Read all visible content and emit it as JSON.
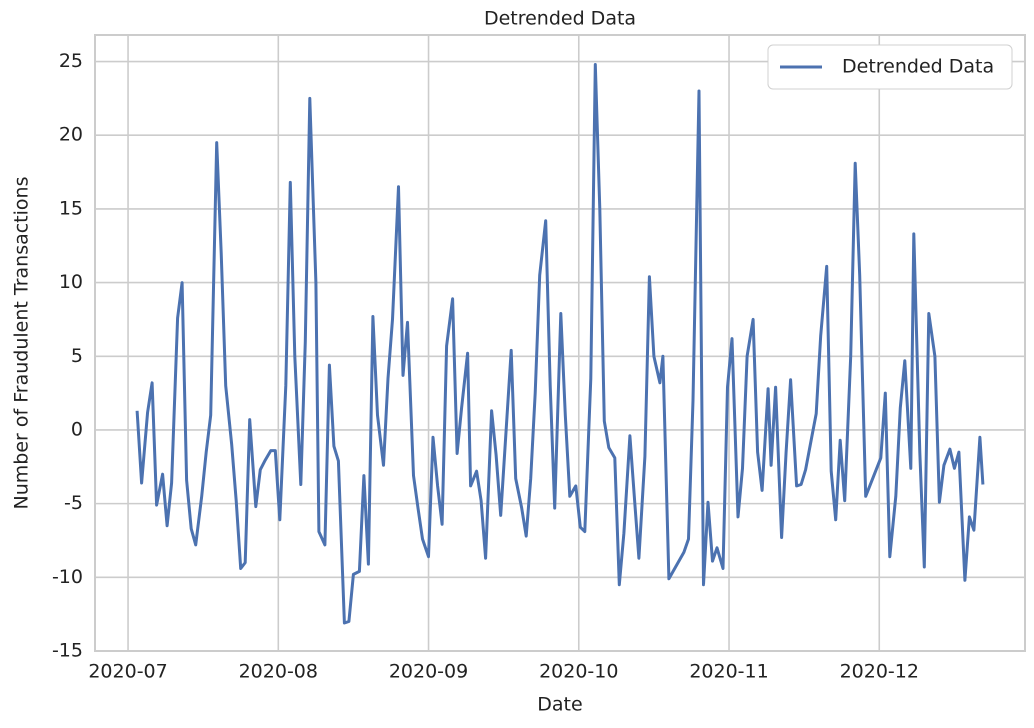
{
  "chart_data": {
    "type": "line",
    "title": "Detrended Data",
    "x_label": "Date",
    "y_label": "Number of Fraudulent Transactions",
    "xlim": [
      6.78,
      12.97
    ],
    "ylim": [
      -15,
      26.8
    ],
    "xticks": [
      {
        "value": 7,
        "label": "2020-07"
      },
      {
        "value": 8,
        "label": "2020-08"
      },
      {
        "value": 9,
        "label": "2020-09"
      },
      {
        "value": 10,
        "label": "2020-10"
      },
      {
        "value": 11,
        "label": "2020-11"
      },
      {
        "value": 12,
        "label": "2020-12"
      }
    ],
    "yticks": [
      -15,
      -10,
      -5,
      0,
      5,
      10,
      15,
      20,
      25
    ],
    "grid": true,
    "legend": "upper right",
    "x": [
      7.06,
      7.09,
      7.13,
      7.16,
      7.19,
      7.23,
      7.26,
      7.29,
      7.33,
      7.36,
      7.39,
      7.42,
      7.45,
      7.49,
      7.52,
      7.55,
      7.59,
      7.62,
      7.65,
      7.69,
      7.72,
      7.75,
      7.78,
      7.81,
      7.85,
      7.88,
      7.91,
      7.95,
      7.98,
      8.01,
      8.05,
      8.08,
      8.11,
      8.15,
      8.18,
      8.21,
      8.25,
      8.27,
      8.31,
      8.34,
      8.37,
      8.4,
      8.44,
      8.47,
      8.5,
      8.54,
      8.57,
      8.6,
      8.63,
      8.66,
      8.7,
      8.73,
      8.76,
      8.8,
      8.83,
      8.86,
      8.9,
      8.93,
      8.96,
      9.0,
      9.03,
      9.06,
      9.09,
      9.12,
      9.16,
      9.19,
      9.22,
      9.26,
      9.28,
      9.32,
      9.35,
      9.38,
      9.42,
      9.45,
      9.48,
      9.52,
      9.55,
      9.58,
      9.62,
      9.65,
      9.68,
      9.71,
      9.74,
      9.78,
      9.81,
      9.84,
      9.88,
      9.91,
      9.94,
      9.98,
      10.01,
      10.04,
      10.08,
      10.11,
      10.14,
      10.17,
      10.2,
      10.24,
      10.27,
      10.3,
      10.34,
      10.37,
      10.4,
      10.44,
      10.47,
      10.5,
      10.54,
      10.56,
      10.6,
      10.7,
      10.73,
      10.76,
      10.8,
      10.83,
      10.86,
      10.89,
      10.92,
      10.96,
      10.99,
      11.02,
      11.06,
      11.09,
      11.12,
      11.16,
      11.19,
      11.22,
      11.26,
      11.28,
      11.31,
      11.35,
      11.38,
      11.41,
      11.45,
      11.48,
      11.51,
      11.55,
      11.58,
      11.61,
      11.65,
      11.68,
      11.71,
      11.74,
      11.77,
      11.81,
      11.84,
      11.87,
      11.91,
      12.01,
      12.04,
      12.07,
      12.11,
      12.14,
      12.17,
      12.21,
      12.23,
      12.27,
      12.3,
      12.33,
      12.37,
      12.4,
      12.43,
      12.47,
      12.5,
      12.53,
      12.57,
      12.6,
      12.63,
      12.67,
      12.69
    ],
    "series": [
      {
        "name": "Detrended Data",
        "color": "#4c72b0",
        "values": [
          1.3,
          -3.6,
          1.2,
          3.2,
          -5.1,
          -3.0,
          -6.5,
          -3.6,
          7.6,
          10.0,
          -3.4,
          -6.7,
          -7.8,
          -4.5,
          -1.5,
          1.0,
          19.5,
          12,
          3,
          -1,
          -4.8,
          -9.4,
          -9.0,
          0.7,
          -5.2,
          -2.7,
          -2.1,
          -1.4,
          -1.4,
          -6.1,
          3,
          16.8,
          5,
          -3.7,
          6,
          22.5,
          10,
          -6.9,
          -7.8,
          4.4,
          -1.1,
          -2.1,
          -13.1,
          -13.0,
          -9.8,
          -9.6,
          -3.1,
          -9.1,
          7.7,
          1,
          -2.4,
          3.5,
          7.5,
          16.5,
          3.7,
          7.3,
          -3.1,
          -5.3,
          -7.4,
          -8.6,
          -0.5,
          -3.8,
          -6.4,
          5.7,
          8.9,
          -1.6,
          1.5,
          5.2,
          -3.8,
          -2.8,
          -4.8,
          -8.7,
          1.3,
          -1.7,
          -5.8,
          0.6,
          5.4,
          -3.3,
          -5.3,
          -7.2,
          -3.3,
          2.5,
          10.5,
          14.2,
          3,
          -5.3,
          7.9,
          1,
          -4.5,
          -3.8,
          -6.6,
          -6.9,
          3.5,
          24.8,
          15,
          0.6,
          -1.2,
          -1.9,
          -10.5,
          -7,
          -0.4,
          -4.6,
          -8.7,
          -1.8,
          10.4,
          5,
          3.2,
          5,
          -10.1,
          -8.3,
          -7.4,
          2,
          23,
          -10.5,
          -4.9,
          -8.9,
          -8.0,
          -9.4,
          2.9,
          6.2,
          -5.9,
          -2.6,
          5,
          7.5,
          -1.5,
          -4.1,
          2.8,
          -2.4,
          2.9,
          -7.3,
          -1.5,
          3.4,
          -3.8,
          -3.7,
          -2.7,
          -0.5,
          1.1,
          6.4,
          11.1,
          -2.8,
          -6.1,
          -0.7,
          -4.8,
          5,
          18.1,
          10.5,
          -4.5,
          -1.9,
          2.5,
          -8.6,
          -4.5,
          1.5,
          4.7,
          -2.6,
          13.3,
          -1.5,
          -9.3,
          7.9,
          5,
          -4.9,
          -2.4,
          -1.3,
          -2.6,
          -1.5,
          -10.2,
          -5.9,
          -6.8,
          -0.5,
          -3.7
        ]
      }
    ]
  }
}
